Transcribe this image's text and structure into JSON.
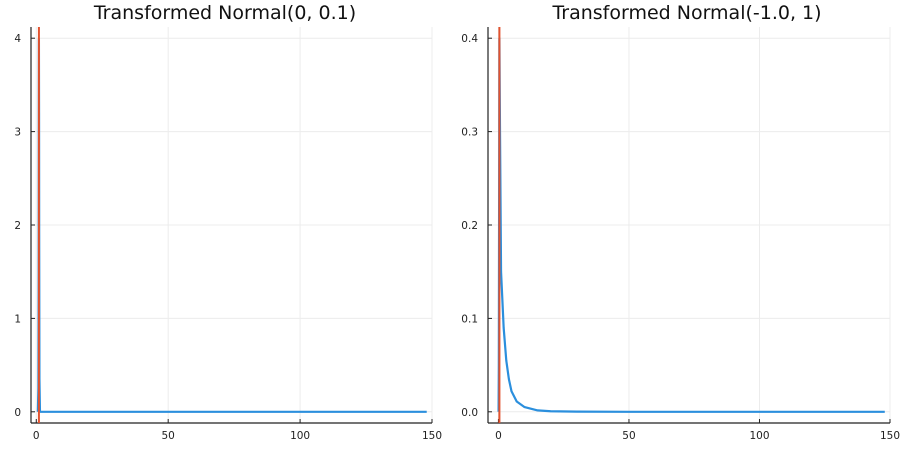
{
  "colors": {
    "density": "#2b8fdd",
    "marker": "#e2522e",
    "grid": "#ececec",
    "axis": "#222222"
  },
  "chart_data": [
    {
      "type": "line",
      "title": "Transformed Normal(0, 0.1)",
      "xlabel": "",
      "ylabel": "",
      "xlim": [
        -2,
        150
      ],
      "ylim": [
        -0.12,
        4.12
      ],
      "grid": true,
      "x_ticks": [
        0,
        50,
        100,
        150
      ],
      "x_tick_labels": [
        "0",
        "50",
        "100",
        "150"
      ],
      "y_ticks": [
        0,
        1,
        2,
        3,
        4
      ],
      "y_tick_labels": [
        "0",
        "1",
        "2",
        "3",
        "4"
      ],
      "series": [
        {
          "x": [
            0.6,
            0.8,
            0.9,
            0.95,
            1.0,
            1.05,
            1.1,
            1.2,
            1.4,
            2,
            5,
            20,
            60,
            100,
            148
          ],
          "y": [
            0.0,
            0.25,
            1.5,
            3.0,
            3.99,
            3.2,
            1.9,
            0.35,
            0.0,
            0,
            0,
            0,
            0,
            0,
            0
          ]
        }
      ],
      "vertical_markers": [
        1.0
      ]
    },
    {
      "type": "line",
      "title": "Transformed Normal(-1.0, 1)",
      "xlabel": "",
      "ylabel": "",
      "xlim": [
        -4,
        150
      ],
      "ylim": [
        -0.012,
        0.412
      ],
      "grid": true,
      "x_ticks": [
        0,
        50,
        100,
        150
      ],
      "x_tick_labels": [
        "0",
        "50",
        "100",
        "150"
      ],
      "y_ticks": [
        0,
        0.1,
        0.2,
        0.3,
        0.4
      ],
      "y_tick_labels": [
        "0.0",
        "0.1",
        "0.2",
        "0.3",
        "0.4"
      ],
      "series": [
        {
          "x": [
            0.05,
            0.15,
            0.37,
            0.6,
            1.0,
            1.5,
            2,
            3,
            4,
            5,
            7,
            10,
            15,
            20,
            30,
            50,
            100,
            148
          ],
          "y": [
            0.0,
            0.05,
            0.4,
            0.3,
            0.15,
            0.12,
            0.09,
            0.055,
            0.035,
            0.022,
            0.011,
            0.005,
            0.0015,
            0.0006,
            0.0002,
            0,
            0,
            0
          ]
        }
      ],
      "vertical_markers": [
        0.37
      ]
    }
  ]
}
